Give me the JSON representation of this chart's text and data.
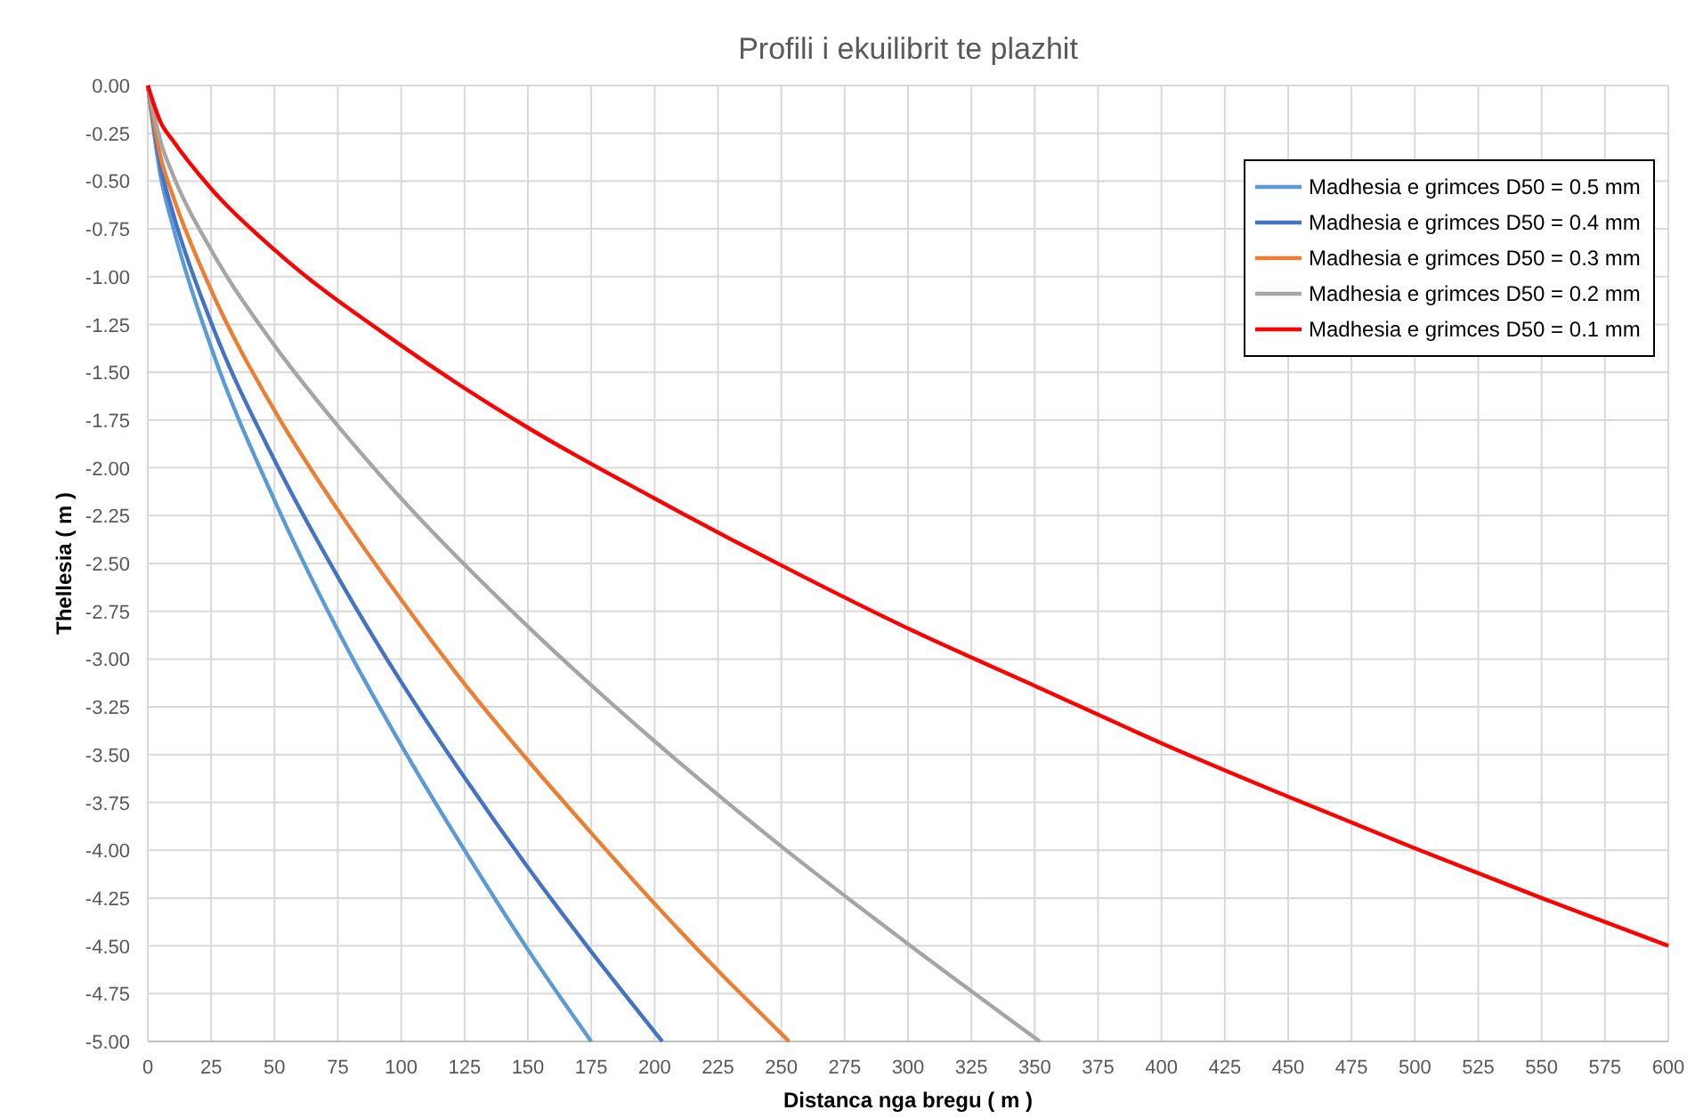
{
  "chart_data": {
    "type": "line",
    "title": "Profili i ekuilibrit te plazhit",
    "xlabel": "Distanca nga bregu ( m )",
    "ylabel": "Thellesia ( m )",
    "xlim": [
      0,
      600
    ],
    "xticks": [
      0,
      25,
      50,
      75,
      100,
      125,
      150,
      175,
      200,
      225,
      250,
      275,
      300,
      325,
      350,
      375,
      400,
      425,
      450,
      475,
      500,
      525,
      550,
      575,
      600
    ],
    "ylim": [
      -5,
      0
    ],
    "yticks": [
      {
        "value": 0,
        "label": "0.00"
      },
      {
        "value": -0.25,
        "label": "-0.25"
      },
      {
        "value": -0.5,
        "label": "-0.50"
      },
      {
        "value": -0.75,
        "label": "-0.75"
      },
      {
        "value": -1,
        "label": "-1.00"
      },
      {
        "value": -1.25,
        "label": "-1.25"
      },
      {
        "value": -1.5,
        "label": "-1.50"
      },
      {
        "value": -1.75,
        "label": "-1.75"
      },
      {
        "value": -2,
        "label": "-2.00"
      },
      {
        "value": -2.25,
        "label": "-2.25"
      },
      {
        "value": -2.5,
        "label": "-2.50"
      },
      {
        "value": -2.75,
        "label": "-2.75"
      },
      {
        "value": -3,
        "label": "-3.00"
      },
      {
        "value": -3.25,
        "label": "-3.25"
      },
      {
        "value": -3.5,
        "label": "-3.50"
      },
      {
        "value": -3.75,
        "label": "-3.75"
      },
      {
        "value": -4,
        "label": "-4.00"
      },
      {
        "value": -4.25,
        "label": "-4.25"
      },
      {
        "value": -4.5,
        "label": "-4.50"
      },
      {
        "value": -4.75,
        "label": "-4.75"
      },
      {
        "value": -5,
        "label": "-5.00"
      }
    ],
    "grid": true,
    "legend": "top right",
    "marker": "none",
    "line_style": "solid",
    "series": [
      {
        "name": "Madhesia e grimces D50 = 0.5 mm",
        "color": "#5b9bd5",
        "x": [
          0,
          5,
          10,
          25,
          50,
          75,
          100,
          125,
          150,
          175
        ],
        "values": [
          0,
          -0.47,
          -0.74,
          -1.37,
          -2.17,
          -2.85,
          -3.45,
          -4.0,
          -4.52,
          -5.0
        ]
      },
      {
        "name": "Madhesia e grimces D50 = 0.4 mm",
        "color": "#4472c4",
        "x": [
          0,
          5,
          10,
          25,
          50,
          75,
          100,
          125,
          150,
          175,
          200,
          203
        ],
        "values": [
          0,
          -0.42,
          -0.67,
          -1.24,
          -1.96,
          -2.57,
          -3.12,
          -3.62,
          -4.09,
          -4.53,
          -4.95,
          -5.0
        ]
      },
      {
        "name": "Madhesia e grimces D50 = 0.3 mm",
        "color": "#ed7d31",
        "x": [
          0,
          5,
          10,
          25,
          50,
          75,
          100,
          125,
          150,
          175,
          200,
          225,
          250,
          253
        ],
        "values": [
          0,
          -0.37,
          -0.58,
          -1.07,
          -1.7,
          -2.22,
          -2.69,
          -3.13,
          -3.53,
          -3.91,
          -4.28,
          -4.63,
          -4.96,
          -5.0
        ]
      },
      {
        "name": "Madhesia e grimces D50 = 0.2 mm",
        "color": "#a5a5a5",
        "x": [
          0,
          5,
          10,
          25,
          50,
          75,
          100,
          150,
          200,
          250,
          300,
          352
        ],
        "values": [
          0,
          -0.29,
          -0.47,
          -0.86,
          -1.36,
          -1.78,
          -2.16,
          -2.83,
          -3.43,
          -3.98,
          -4.49,
          -5.0
        ]
      },
      {
        "name": "Madhesia e grimces D50 = 0.1 mm",
        "color": "#ff0000",
        "x": [
          0,
          5,
          10,
          25,
          50,
          100,
          150,
          200,
          250,
          300,
          350,
          400,
          450,
          500,
          550,
          600
        ],
        "values": [
          0,
          -0.19,
          -0.29,
          -0.54,
          -0.86,
          -1.36,
          -1.79,
          -2.16,
          -2.51,
          -2.84,
          -3.14,
          -3.44,
          -3.72,
          -3.99,
          -4.25,
          -4.5
        ]
      }
    ]
  }
}
